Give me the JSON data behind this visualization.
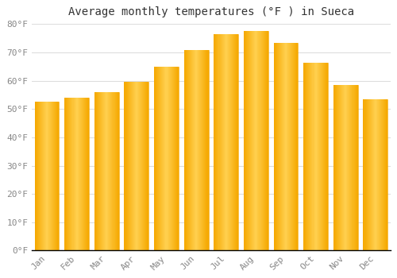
{
  "title": "Average monthly temperatures (°F ) in Sueca",
  "months": [
    "Jan",
    "Feb",
    "Mar",
    "Apr",
    "May",
    "Jun",
    "Jul",
    "Aug",
    "Sep",
    "Oct",
    "Nov",
    "Dec"
  ],
  "values": [
    52.5,
    54.0,
    56.0,
    59.5,
    65.0,
    71.0,
    76.5,
    77.5,
    73.5,
    66.5,
    58.5,
    53.5
  ],
  "bar_color_left": "#F5A800",
  "bar_color_center": "#FFD050",
  "bar_color_right": "#F5A800",
  "background_color": "#FFFFFF",
  "plot_area_color": "#FFFFFF",
  "grid_color": "#DDDDDD",
  "text_color": "#888888",
  "axis_color": "#000000",
  "ylim": [
    0,
    80
  ],
  "yticks": [
    0,
    10,
    20,
    30,
    40,
    50,
    60,
    70,
    80
  ],
  "ytick_labels": [
    "0°F",
    "10°F",
    "20°F",
    "30°F",
    "40°F",
    "50°F",
    "60°F",
    "70°F",
    "80°F"
  ],
  "title_fontsize": 10,
  "tick_fontsize": 8
}
